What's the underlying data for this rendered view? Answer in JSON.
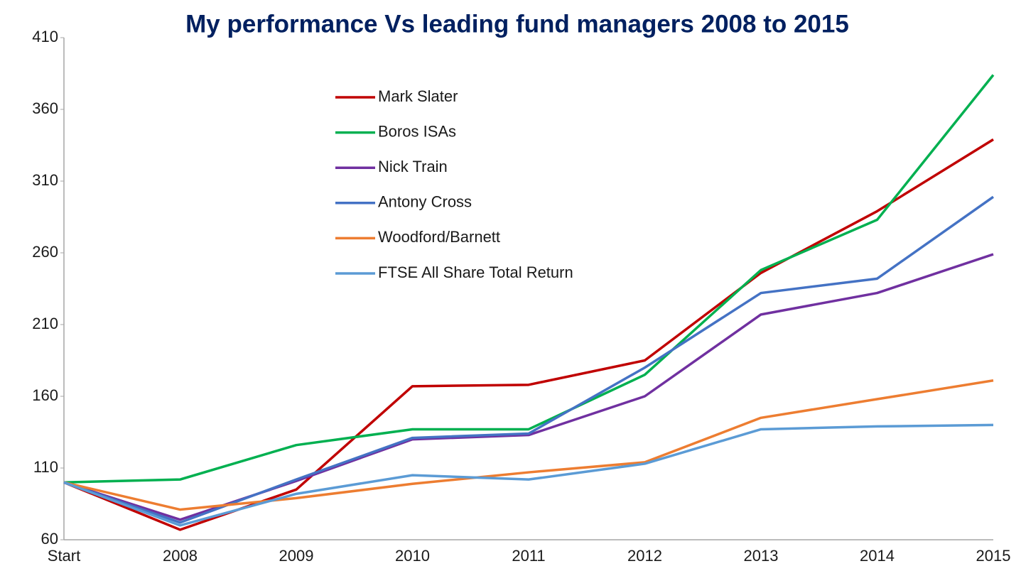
{
  "chart_data": {
    "type": "line",
    "title": "My performance Vs leading fund managers 2008 to 2015",
    "categories": [
      "Start",
      "2008",
      "2009",
      "2010",
      "2011",
      "2012",
      "2013",
      "2014",
      "2015"
    ],
    "series": [
      {
        "name": "Mark Slater",
        "color": "#c00000",
        "values": [
          100,
          67,
          95,
          167,
          168,
          185,
          246,
          289,
          339
        ]
      },
      {
        "name": "Boros ISAs",
        "color": "#00b050",
        "values": [
          100,
          102,
          126,
          137,
          137,
          175,
          248,
          283,
          384
        ]
      },
      {
        "name": "Nick Train",
        "color": "#7030a0",
        "values": [
          100,
          74,
          101,
          130,
          133,
          160,
          217,
          232,
          259
        ]
      },
      {
        "name": "Antony Cross",
        "color": "#4472c4",
        "values": [
          100,
          72,
          102,
          131,
          134,
          180,
          232,
          242,
          299
        ]
      },
      {
        "name": "Woodford/Barnett",
        "color": "#ed7d31",
        "values": [
          100,
          81,
          89,
          99,
          107,
          114,
          145,
          158,
          171
        ]
      },
      {
        "name": "FTSE All Share Total Return",
        "color": "#5b9bd5",
        "values": [
          100,
          70,
          92,
          105,
          102,
          113,
          137,
          139,
          140
        ]
      }
    ],
    "ylim": [
      60,
      410
    ],
    "yticks": [
      60,
      110,
      160,
      210,
      260,
      310,
      360,
      410
    ],
    "grid": false,
    "legend": "upper center"
  }
}
